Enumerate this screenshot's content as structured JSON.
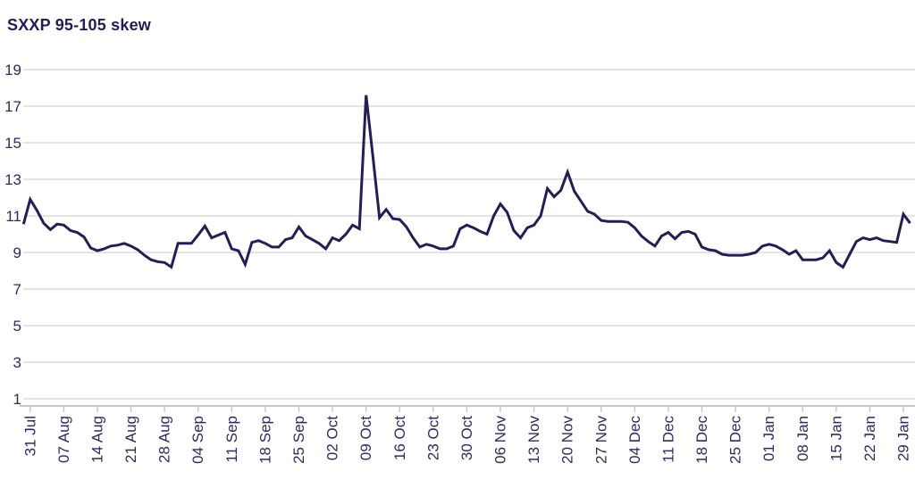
{
  "chart_data": {
    "type": "line",
    "title": "SXXP 95-105 skew",
    "grid": true,
    "legend_position": "none",
    "ylim": [
      1,
      19
    ],
    "y_ticks": [
      1,
      3,
      5,
      7,
      9,
      11,
      13,
      15,
      17,
      19
    ],
    "x_tick_labels": [
      "31 Jul",
      "07 Aug",
      "14 Aug",
      "21 Aug",
      "28 Aug",
      "04 Sep",
      "11 Sep",
      "18 Sep",
      "25 Sep",
      "02 Oct",
      "09 Oct",
      "16 Oct",
      "23 Oct",
      "30 Oct",
      "06 Nov",
      "13 Nov",
      "20 Nov",
      "27 Nov",
      "04 Dec",
      "11 Dec",
      "18 Dec",
      "25 Dec",
      "01 Jan",
      "08 Jan",
      "15 Jan",
      "22 Jan",
      "29 Jan"
    ],
    "colors": {
      "line": "#251d54",
      "grid": "#dcdcdc",
      "axis": "#c6c6c6",
      "labels": "#2e2960",
      "title": "#231d56",
      "background": "#ffffff"
    },
    "series": [
      {
        "name": "SXXP 95-105 skew",
        "x": [
          "28 Jul",
          "31 Jul",
          "01 Aug",
          "02 Aug",
          "03 Aug",
          "04 Aug",
          "07 Aug",
          "08 Aug",
          "09 Aug",
          "10 Aug",
          "11 Aug",
          "14 Aug",
          "15 Aug",
          "16 Aug",
          "17 Aug",
          "18 Aug",
          "21 Aug",
          "22 Aug",
          "23 Aug",
          "24 Aug",
          "25 Aug",
          "28 Aug",
          "29 Aug",
          "30 Aug",
          "31 Aug",
          "01 Sep",
          "04 Sep",
          "05 Sep",
          "06 Sep",
          "07 Sep",
          "08 Sep",
          "11 Sep",
          "12 Sep",
          "13 Sep",
          "14 Sep",
          "15 Sep",
          "18 Sep",
          "19 Sep",
          "20 Sep",
          "21 Sep",
          "22 Sep",
          "25 Sep",
          "26 Sep",
          "27 Sep",
          "28 Sep",
          "29 Sep",
          "02 Oct",
          "03 Oct",
          "04 Oct",
          "05 Oct",
          "06 Oct",
          "09 Oct",
          "10 Oct",
          "11 Oct",
          "12 Oct",
          "13 Oct",
          "16 Oct",
          "17 Oct",
          "18 Oct",
          "19 Oct",
          "20 Oct",
          "23 Oct",
          "24 Oct",
          "25 Oct",
          "26 Oct",
          "27 Oct",
          "30 Oct",
          "31 Oct",
          "01 Nov",
          "02 Nov",
          "03 Nov",
          "06 Nov",
          "07 Nov",
          "08 Nov",
          "09 Nov",
          "10 Nov",
          "13 Nov",
          "14 Nov",
          "15 Nov",
          "16 Nov",
          "17 Nov",
          "20 Nov",
          "21 Nov",
          "22 Nov",
          "23 Nov",
          "24 Nov",
          "27 Nov",
          "28 Nov",
          "29 Nov",
          "30 Nov",
          "01 Dec",
          "04 Dec",
          "05 Dec",
          "06 Dec",
          "07 Dec",
          "08 Dec",
          "11 Dec",
          "12 Dec",
          "13 Dec",
          "14 Dec",
          "15 Dec",
          "18 Dec",
          "19 Dec",
          "20 Dec",
          "21 Dec",
          "22 Dec",
          "25 Dec",
          "26 Dec",
          "27 Dec",
          "28 Dec",
          "29 Dec",
          "01 Jan",
          "02 Jan",
          "03 Jan",
          "04 Jan",
          "05 Jan",
          "08 Jan",
          "09 Jan",
          "10 Jan",
          "11 Jan",
          "12 Jan",
          "15 Jan",
          "16 Jan",
          "17 Jan",
          "18 Jan",
          "19 Jan",
          "22 Jan",
          "23 Jan",
          "24 Jan",
          "25 Jan",
          "26 Jan",
          "29 Jan",
          "30 Jan"
        ],
        "values": [
          10.55,
          11.9,
          11.3,
          10.6,
          10.25,
          10.55,
          10.5,
          10.2,
          10.1,
          9.85,
          9.25,
          9.1,
          9.2,
          9.35,
          9.4,
          9.5,
          9.35,
          9.15,
          8.85,
          8.6,
          8.5,
          8.45,
          8.2,
          9.5,
          9.5,
          9.5,
          9.95,
          10.45,
          9.8,
          9.95,
          10.1,
          9.2,
          9.1,
          8.35,
          9.55,
          9.65,
          9.5,
          9.3,
          9.3,
          9.7,
          9.8,
          10.4,
          9.9,
          9.7,
          9.5,
          9.2,
          9.8,
          9.65,
          10.0,
          10.5,
          10.3,
          17.6,
          14.3,
          10.9,
          11.35,
          10.85,
          10.8,
          10.4,
          9.8,
          9.3,
          9.45,
          9.35,
          9.2,
          9.2,
          9.35,
          10.3,
          10.5,
          10.35,
          10.15,
          10.0,
          11.0,
          11.65,
          11.2,
          10.2,
          9.8,
          10.35,
          10.5,
          11.0,
          12.5,
          12.05,
          12.4,
          13.4,
          12.35,
          11.8,
          11.25,
          11.1,
          10.75,
          10.7,
          10.7,
          10.7,
          10.65,
          10.35,
          9.9,
          9.6,
          9.35,
          9.9,
          10.1,
          9.75,
          10.1,
          10.15,
          10.0,
          9.3,
          9.15,
          9.1,
          8.9,
          8.85,
          8.85,
          8.85,
          8.9,
          9.0,
          9.35,
          9.45,
          9.35,
          9.15,
          8.9,
          9.1,
          8.6,
          8.6,
          8.6,
          8.7,
          9.1,
          8.45,
          8.2,
          8.9,
          9.6,
          9.8,
          9.7,
          9.8,
          9.65,
          9.6,
          9.55,
          11.1,
          10.6
        ]
      }
    ]
  }
}
